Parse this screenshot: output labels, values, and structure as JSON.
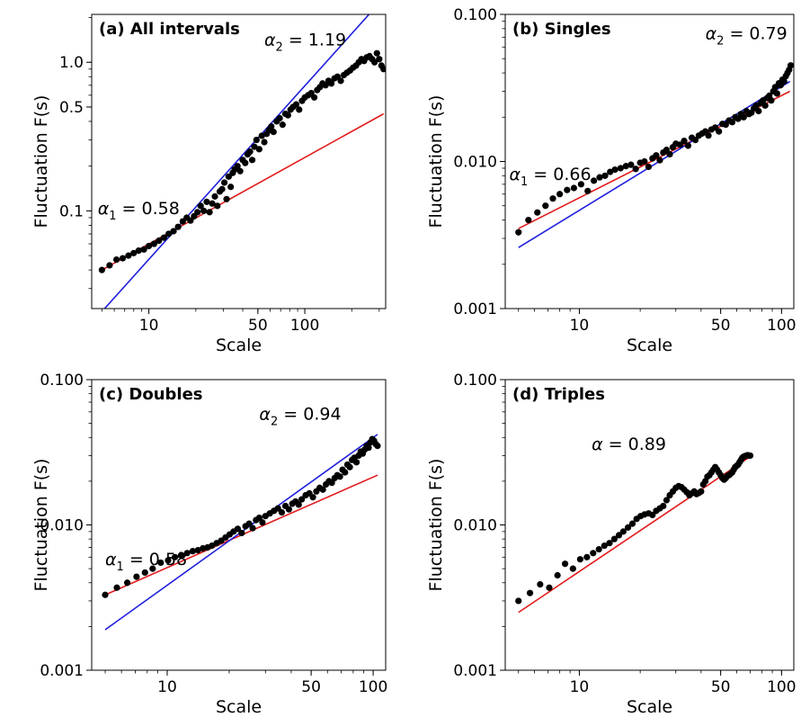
{
  "chart_data": [
    {
      "type": "scatter",
      "title": "(a) All intervals",
      "xlabel": "Scale",
      "ylabel": "Fluctuation F(s)",
      "xscale": "log",
      "yscale": "log",
      "xlim": [
        4.3,
        330
      ],
      "ylim": [
        0.022,
        2.1
      ],
      "xticks": [
        {
          "value": 10,
          "label": "10"
        },
        {
          "value": 50,
          "label": "50"
        },
        {
          "value": 100,
          "label": "100"
        }
      ],
      "yticks": [
        {
          "value": 0.1,
          "label": "0.1"
        },
        {
          "value": 0.5,
          "label": "0.5"
        },
        {
          "value": 1.0,
          "label": "1.0"
        }
      ],
      "annotations": [
        {
          "prefix": "α",
          "sub": "1",
          "text": " = 0.58",
          "x": 4.7,
          "y": 0.095
        },
        {
          "prefix": "α",
          "sub": "2",
          "text": " = 1.19",
          "x": 55,
          "y": 1.3
        }
      ],
      "fits": [
        {
          "color": "#e31a1c",
          "x": [
            5,
            320
          ],
          "y": [
            0.04,
            0.45
          ]
        },
        {
          "color": "#1f1fdd",
          "x": [
            5,
            320
          ],
          "y": [
            0.021,
            2.7
          ]
        }
      ],
      "points": {
        "x": [
          5,
          5.6,
          6.2,
          6.8,
          7.4,
          8,
          8.6,
          9.3,
          10,
          10.8,
          11.6,
          12.5,
          13.4,
          14.4,
          15.4,
          16.5,
          17.5,
          18.5,
          19.5,
          20.5,
          21.5,
          22.5,
          23.5,
          24.5,
          25.5,
          26.5,
          27.5,
          28.5,
          29.5,
          30.5,
          31.5,
          32.5,
          33.5,
          34.5,
          35.5,
          37,
          38.5,
          40,
          41.5,
          43,
          44.5,
          46,
          47.5,
          49,
          51,
          53,
          55,
          57,
          59,
          61,
          63,
          66,
          69,
          72,
          75,
          78,
          81,
          84,
          88,
          92,
          96,
          100,
          105,
          110,
          115,
          120,
          125,
          130,
          136,
          142,
          148,
          155,
          162,
          170,
          178,
          186,
          195,
          204,
          213,
          222,
          231,
          240,
          250,
          260,
          270,
          280,
          290,
          300,
          310,
          320
        ],
        "y": [
          0.04,
          0.043,
          0.047,
          0.048,
          0.05,
          0.052,
          0.054,
          0.055,
          0.058,
          0.06,
          0.063,
          0.066,
          0.07,
          0.073,
          0.078,
          0.085,
          0.09,
          0.086,
          0.092,
          0.098,
          0.108,
          0.1,
          0.115,
          0.098,
          0.112,
          0.125,
          0.108,
          0.135,
          0.14,
          0.155,
          0.12,
          0.17,
          0.145,
          0.18,
          0.19,
          0.2,
          0.185,
          0.22,
          0.21,
          0.24,
          0.25,
          0.22,
          0.27,
          0.3,
          0.26,
          0.32,
          0.29,
          0.33,
          0.35,
          0.37,
          0.34,
          0.4,
          0.42,
          0.38,
          0.45,
          0.44,
          0.48,
          0.5,
          0.52,
          0.48,
          0.55,
          0.58,
          0.6,
          0.62,
          0.58,
          0.65,
          0.68,
          0.72,
          0.7,
          0.75,
          0.72,
          0.78,
          0.8,
          0.75,
          0.82,
          0.85,
          0.88,
          0.92,
          0.95,
          1.0,
          1.05,
          1.02,
          1.08,
          1.1,
          1.05,
          1.0,
          1.15,
          1.05,
          0.95,
          0.9
        ]
      }
    },
    {
      "type": "scatter",
      "title": "(b) Singles",
      "xlabel": "Scale",
      "ylabel": "Fluctuation F(s)",
      "xscale": "log",
      "yscale": "log",
      "xlim": [
        4.3,
        115
      ],
      "ylim": [
        0.001,
        0.1
      ],
      "xticks": [
        {
          "value": 10,
          "label": "10"
        },
        {
          "value": 50,
          "label": "50"
        },
        {
          "value": 100,
          "label": "100"
        }
      ],
      "yticks": [
        {
          "value": 0.001,
          "label": "0.001"
        },
        {
          "value": 0.01,
          "label": "0.010"
        },
        {
          "value": 0.1,
          "label": "0.100"
        }
      ],
      "annotations": [
        {
          "prefix": "α",
          "sub": "1",
          "text": " = 0.66",
          "x": 4.5,
          "y": 0.0075
        },
        {
          "prefix": "α",
          "sub": "2",
          "text": " = 0.79",
          "x": 42,
          "y": 0.068
        }
      ],
      "fits": [
        {
          "color": "#e31a1c",
          "x": [
            5,
            110
          ],
          "y": [
            0.0035,
            0.03
          ]
        },
        {
          "color": "#1f1fdd",
          "x": [
            5,
            110
          ],
          "y": [
            0.0026,
            0.035
          ]
        }
      ],
      "points": {
        "x": [
          5,
          5.6,
          6.2,
          6.8,
          7.4,
          8,
          8.7,
          9.4,
          10.2,
          11,
          11.8,
          12.6,
          13.4,
          14.2,
          15,
          16,
          17,
          18,
          19,
          20,
          21,
          22,
          23,
          24,
          25,
          26,
          27,
          28,
          29,
          30,
          31.5,
          33,
          34.5,
          36,
          37.5,
          39,
          40.5,
          42,
          43.5,
          45,
          47,
          49,
          51,
          53,
          55,
          57,
          59,
          61,
          63,
          65,
          67,
          69,
          71,
          73,
          75,
          77,
          79,
          81,
          83,
          85,
          87,
          89,
          91,
          93,
          95,
          97,
          99,
          101,
          103,
          105,
          107,
          109,
          111
        ],
        "y": [
          0.0033,
          0.004,
          0.0045,
          0.005,
          0.0056,
          0.006,
          0.0064,
          0.0066,
          0.007,
          0.0063,
          0.0074,
          0.0078,
          0.008,
          0.0085,
          0.0088,
          0.009,
          0.0093,
          0.0095,
          0.0089,
          0.0098,
          0.01,
          0.0092,
          0.0105,
          0.011,
          0.0102,
          0.0115,
          0.012,
          0.0112,
          0.0125,
          0.0132,
          0.013,
          0.0138,
          0.0128,
          0.0145,
          0.014,
          0.015,
          0.0155,
          0.016,
          0.015,
          0.0165,
          0.017,
          0.016,
          0.018,
          0.0178,
          0.019,
          0.0185,
          0.02,
          0.0195,
          0.021,
          0.02,
          0.022,
          0.021,
          0.0215,
          0.023,
          0.024,
          0.022,
          0.025,
          0.026,
          0.024,
          0.027,
          0.028,
          0.026,
          0.03,
          0.032,
          0.029,
          0.034,
          0.033,
          0.036,
          0.035,
          0.038,
          0.04,
          0.042,
          0.045
        ]
      }
    },
    {
      "type": "scatter",
      "title": "(c) Doubles",
      "xlabel": "Scale",
      "ylabel": "Fluctuation F(s)",
      "xscale": "log",
      "yscale": "log",
      "xlim": [
        4.3,
        115
      ],
      "ylim": [
        0.001,
        0.1
      ],
      "xticks": [
        {
          "value": 10,
          "label": "10"
        },
        {
          "value": 50,
          "label": "50"
        },
        {
          "value": 100,
          "label": "100"
        }
      ],
      "yticks": [
        {
          "value": 0.001,
          "label": "0.001"
        },
        {
          "value": 0.01,
          "label": "0.010"
        },
        {
          "value": 0.1,
          "label": "0.100"
        }
      ],
      "annotations": [
        {
          "prefix": "α",
          "sub": "1",
          "text": " = 0.58",
          "x": 5.0,
          "y": 0.0053
        },
        {
          "prefix": "α",
          "sub": "2",
          "text": " = 0.94",
          "x": 28,
          "y": 0.053
        }
      ],
      "fits": [
        {
          "color": "#e31a1c",
          "x": [
            5,
            105
          ],
          "y": [
            0.0033,
            0.022
          ]
        },
        {
          "color": "#1f1fdd",
          "x": [
            5,
            105
          ],
          "y": [
            0.0019,
            0.042
          ]
        }
      ],
      "points": {
        "x": [
          5,
          5.7,
          6.4,
          7.1,
          7.8,
          8.5,
          9.3,
          10.1,
          10.9,
          11.7,
          12.5,
          13.3,
          14.1,
          14.9,
          15.7,
          16.5,
          17.4,
          18.3,
          19.2,
          20.1,
          21,
          22,
          23,
          24,
          25,
          26,
          27,
          28,
          29,
          30,
          31.5,
          33,
          34.5,
          36,
          37.5,
          39,
          40.5,
          42,
          43.5,
          45,
          47,
          49,
          51,
          53,
          55,
          57,
          59,
          61,
          63,
          65,
          67,
          69,
          71,
          73,
          75,
          77,
          79,
          81,
          83,
          85,
          87,
          89,
          91,
          93,
          95,
          97,
          99,
          101,
          103,
          105
        ],
        "y": [
          0.0033,
          0.0037,
          0.004,
          0.0044,
          0.0047,
          0.005,
          0.0055,
          0.0057,
          0.006,
          0.0062,
          0.0064,
          0.0066,
          0.0067,
          0.0069,
          0.007,
          0.0072,
          0.0075,
          0.0078,
          0.0082,
          0.0086,
          0.009,
          0.0094,
          0.0088,
          0.0098,
          0.0102,
          0.0095,
          0.0108,
          0.0112,
          0.0104,
          0.0115,
          0.012,
          0.0125,
          0.013,
          0.0122,
          0.0135,
          0.0128,
          0.014,
          0.0145,
          0.0138,
          0.015,
          0.016,
          0.0165,
          0.0155,
          0.017,
          0.018,
          0.0175,
          0.019,
          0.02,
          0.0195,
          0.021,
          0.022,
          0.0215,
          0.024,
          0.023,
          0.026,
          0.025,
          0.028,
          0.029,
          0.027,
          0.03,
          0.032,
          0.031,
          0.033,
          0.035,
          0.034,
          0.037,
          0.039,
          0.038,
          0.036,
          0.035
        ]
      }
    },
    {
      "type": "scatter",
      "title": "(d) Triples",
      "xlabel": "Scale",
      "ylabel": "Fluctuation F(s)",
      "xscale": "log",
      "yscale": "log",
      "xlim": [
        4.3,
        115
      ],
      "ylim": [
        0.001,
        0.1
      ],
      "xticks": [
        {
          "value": 10,
          "label": "10"
        },
        {
          "value": 50,
          "label": "50"
        },
        {
          "value": 100,
          "label": "100"
        }
      ],
      "yticks": [
        {
          "value": 0.001,
          "label": "0.001"
        },
        {
          "value": 0.01,
          "label": "0.010"
        },
        {
          "value": 0.1,
          "label": "0.100"
        }
      ],
      "annotations": [
        {
          "prefix": "α",
          "sub": "",
          "text": " = 0.89",
          "x": 11.5,
          "y": 0.033
        }
      ],
      "fits": [
        {
          "color": "#e31a1c",
          "x": [
            5,
            70
          ],
          "y": [
            0.0025,
            0.0295
          ]
        }
      ],
      "points": {
        "x": [
          5,
          5.7,
          6.4,
          7.1,
          7.8,
          8.5,
          9.3,
          10.1,
          10.9,
          11.7,
          12.5,
          13.3,
          14.1,
          14.9,
          15.7,
          16.5,
          17.4,
          18.3,
          19.2,
          20.1,
          21,
          22,
          23,
          24,
          25,
          26,
          27,
          28,
          29,
          30,
          31,
          32,
          33,
          34,
          35,
          36,
          37,
          38,
          39,
          40,
          41,
          42,
          43,
          44,
          45,
          46,
          47,
          48,
          49,
          50,
          51,
          52,
          53,
          54,
          55,
          56,
          57,
          58,
          59,
          60,
          61,
          62,
          63,
          64,
          65,
          66,
          67,
          68,
          69,
          70
        ],
        "y": [
          0.003,
          0.0034,
          0.0039,
          0.0037,
          0.0045,
          0.0054,
          0.005,
          0.0058,
          0.006,
          0.0064,
          0.0068,
          0.0072,
          0.0075,
          0.008,
          0.0085,
          0.009,
          0.0096,
          0.0102,
          0.011,
          0.0115,
          0.0118,
          0.012,
          0.0117,
          0.0125,
          0.013,
          0.0135,
          0.0148,
          0.016,
          0.017,
          0.018,
          0.0185,
          0.0182,
          0.0175,
          0.0168,
          0.016,
          0.0165,
          0.017,
          0.0163,
          0.0166,
          0.017,
          0.019,
          0.02,
          0.0215,
          0.022,
          0.023,
          0.024,
          0.025,
          0.024,
          0.023,
          0.022,
          0.021,
          0.0205,
          0.021,
          0.0218,
          0.022,
          0.0225,
          0.023,
          0.024,
          0.025,
          0.0255,
          0.026,
          0.027,
          0.028,
          0.029,
          0.0295,
          0.0298,
          0.03,
          0.0302,
          0.03,
          0.03
        ]
      }
    }
  ]
}
